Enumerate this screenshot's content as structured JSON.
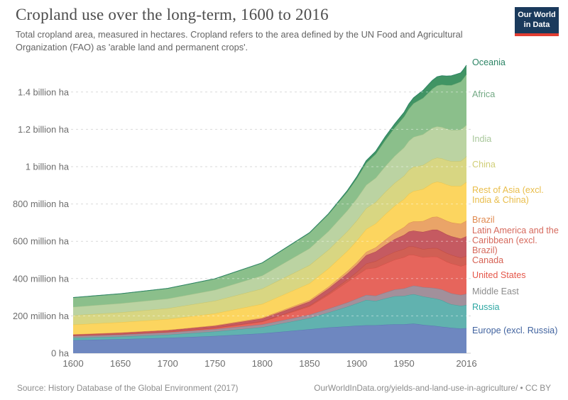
{
  "header": {
    "title": "Cropland use over the long-term, 1600 to 2016",
    "subtitle": "Total cropland area, measured in hectares. Cropland refers to the area defined by the UN Food and Agricultural Organization (FAO) as 'arable land and permanent crops'.",
    "logo": {
      "line1": "Our World",
      "line2": "in Data",
      "bg_color": "#1a3a5c",
      "stripe_color": "#e23d32"
    }
  },
  "footer": {
    "source": "Source: History Database of the Global Environment (2017)",
    "link": "OurWorldInData.org/yields-and-land-use-in-agriculture/ • CC BY"
  },
  "chart_data": {
    "type": "area",
    "stacked": true,
    "title": "Cropland use over the long-term, 1600 to 2016",
    "unit": "hectares",
    "xlabel": "",
    "ylabel": "",
    "ylim": [
      0,
      1550
    ],
    "grid": "dashed-horizontal",
    "legend_position": "right",
    "x": [
      1600,
      1650,
      1700,
      1750,
      1800,
      1850,
      1870,
      1890,
      1900,
      1910,
      1920,
      1930,
      1940,
      1950,
      1955,
      1960,
      1965,
      1970,
      1975,
      1980,
      1985,
      1990,
      1995,
      2000,
      2005,
      2010,
      2013,
      2016
    ],
    "x_ticks": [
      1600,
      1650,
      1700,
      1750,
      1800,
      1850,
      1900,
      1950,
      2016
    ],
    "y_ticks": [
      {
        "value": 1400,
        "label": "1.4 billion ha"
      },
      {
        "value": 1200,
        "label": "1.2 billion ha"
      },
      {
        "value": 1000,
        "label": "1 billion ha"
      },
      {
        "value": 800,
        "label": "800 million ha"
      },
      {
        "value": 600,
        "label": "600 million ha"
      },
      {
        "value": 400,
        "label": "400 million ha"
      },
      {
        "value": 200,
        "label": "200 million ha"
      },
      {
        "value": 0,
        "label": "0 ha"
      }
    ],
    "series": [
      {
        "name": "Europe (excl. Russia)",
        "fill": "#6e87c0",
        "edge": "#5a76b3",
        "label_color": "#41639f",
        "values": [
          70,
          75,
          82,
          92,
          106,
          128,
          138,
          144,
          147,
          150,
          150,
          153,
          155,
          155,
          157,
          158,
          156,
          152,
          150,
          148,
          145,
          142,
          139,
          136,
          134,
          132,
          133,
          134
        ]
      },
      {
        "name": "Russia",
        "fill": "#61b2af",
        "edge": "#47a19d",
        "label_color": "#2fa8a4",
        "values": [
          12,
          14,
          17,
          24,
          33,
          60,
          80,
          105,
          120,
          135,
          130,
          140,
          150,
          152,
          155,
          158,
          155,
          152,
          150,
          148,
          146,
          142,
          133,
          126,
          124,
          122,
          123,
          125
        ]
      },
      {
        "name": "Middle East",
        "fill": "#a2909b",
        "edge": "#8f7d8a",
        "label_color": "#8d8d8d",
        "values": [
          11,
          11,
          12,
          13,
          15,
          18,
          20,
          23,
          25,
          27,
          28,
          32,
          36,
          40,
          43,
          46,
          48,
          50,
          52,
          54,
          56,
          58,
          59,
          59,
          58,
          58,
          59,
          60
        ]
      },
      {
        "name": "United States",
        "fill": "#e6655c",
        "edge": "#d65048",
        "label_color": "#e5574a",
        "values": [
          1,
          2,
          3,
          6,
          15,
          45,
          75,
          110,
          125,
          140,
          150,
          155,
          160,
          168,
          172,
          165,
          162,
          160,
          164,
          168,
          170,
          162,
          160,
          160,
          158,
          155,
          156,
          158
        ]
      },
      {
        "name": "Canada",
        "fill": "#d15f54",
        "edge": "#c04c41",
        "label_color": "#d66355",
        "values": [
          0.2,
          0.3,
          0.5,
          1,
          2,
          5,
          8,
          13,
          18,
          28,
          35,
          40,
          42,
          44,
          45,
          45,
          44,
          44,
          45,
          46,
          46,
          46,
          46,
          46,
          45,
          45,
          45,
          45
        ]
      },
      {
        "name": "Latin America and the Caribbean (excl. Brazil)",
        "fill": "#c55a61",
        "edge": "#b3474f",
        "label_color": "#d66a5d",
        "values": [
          6,
          7,
          8,
          10,
          14,
          20,
          25,
          32,
          38,
          45,
          52,
          60,
          68,
          75,
          80,
          85,
          88,
          92,
          95,
          98,
          99,
          100,
          100,
          100,
          101,
          102,
          104,
          105
        ]
      },
      {
        "name": "Brazil",
        "fill": "#eaa468",
        "edge": "#dd9050",
        "label_color": "#e0894f",
        "values": [
          1,
          1.5,
          2,
          3,
          5,
          8,
          10,
          13,
          15,
          18,
          22,
          28,
          35,
          42,
          46,
          50,
          54,
          58,
          63,
          68,
          70,
          72,
          73,
          74,
          77,
          80,
          82,
          83
        ]
      },
      {
        "name": "Rest of Asia (excl. India & China)",
        "fill": "#fcd55f",
        "edge": "#eec449",
        "label_color": "#e9bd4a",
        "values": [
          52,
          55,
          58,
          64,
          74,
          90,
          98,
          108,
          115,
          122,
          128,
          136,
          144,
          150,
          156,
          162,
          167,
          172,
          177,
          182,
          187,
          192,
          194,
          196,
          199,
          202,
          205,
          208
        ]
      },
      {
        "name": "China",
        "fill": "#d8d682",
        "edge": "#c7c56b",
        "label_color": "#d0ce77",
        "values": [
          50,
          53,
          58,
          68,
          82,
          98,
          100,
          105,
          108,
          112,
          115,
          120,
          122,
          125,
          128,
          130,
          129,
          128,
          128,
          128,
          129,
          130,
          131,
          132,
          133,
          134,
          135,
          137
        ]
      },
      {
        "name": "India",
        "fill": "#bbd3a2",
        "edge": "#a9c48c",
        "label_color": "#a8c79a",
        "values": [
          45,
          48,
          52,
          58,
          70,
          90,
          100,
          112,
          118,
          125,
          130,
          138,
          145,
          152,
          156,
          160,
          163,
          165,
          167,
          168,
          168,
          168,
          168,
          168,
          168,
          168,
          168,
          169
        ]
      },
      {
        "name": "Africa",
        "fill": "#8bbf8b",
        "edge": "#75ad75",
        "label_color": "#73a984",
        "values": [
          50,
          52,
          55,
          60,
          68,
          82,
          90,
          100,
          108,
          118,
          128,
          140,
          152,
          165,
          172,
          180,
          188,
          195,
          202,
          210,
          219,
          228,
          234,
          240,
          249,
          258,
          265,
          272
        ]
      },
      {
        "name": "Oceania",
        "fill": "#419464",
        "edge": "#2c8465",
        "label_color": "#2c8465",
        "values": [
          0.1,
          0.1,
          0.2,
          0.3,
          0.5,
          2,
          4,
          7,
          9,
          12,
          15,
          18,
          20,
          23,
          26,
          30,
          35,
          40,
          43,
          45,
          47,
          48,
          49,
          50,
          49,
          47,
          47,
          48
        ]
      }
    ]
  }
}
